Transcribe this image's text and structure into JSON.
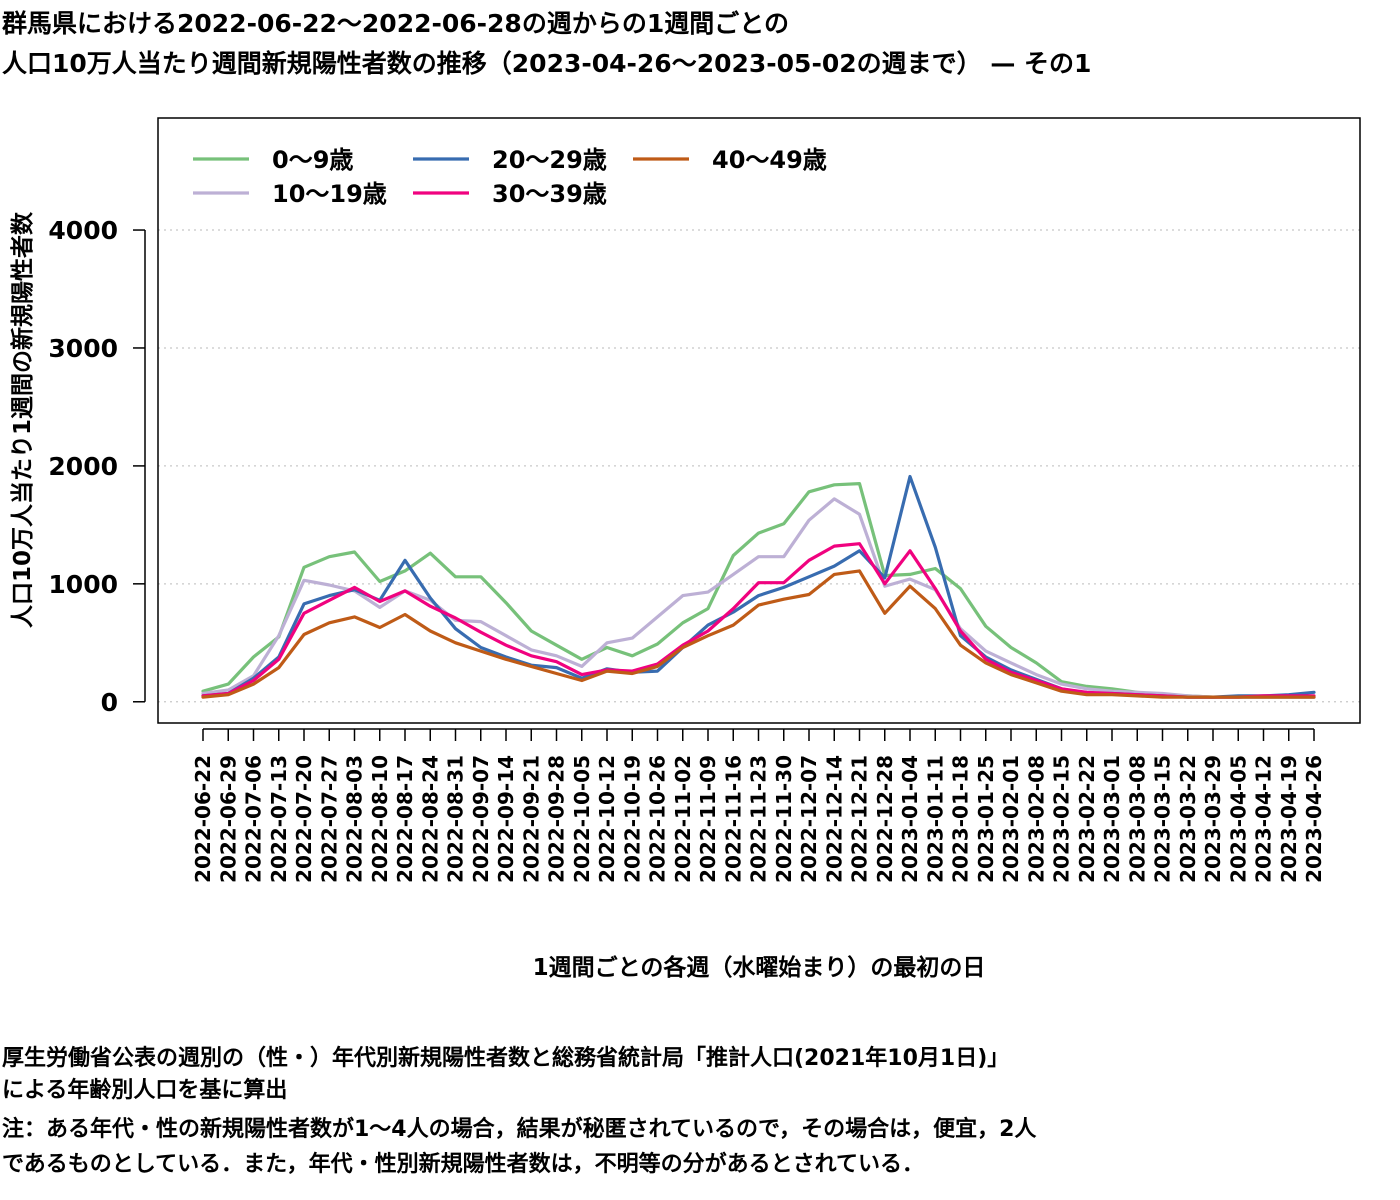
{
  "title": {
    "line1": "群馬県における2022-06-22〜2022-06-28の週からの1週間ごとの",
    "line2": "人口10万人当たり週間新規陽性者数の推移（2023-04-26〜2023-05-02の週まで） — その1"
  },
  "notes": {
    "line1": "厚生労働省公表の週別の（性・）年代別新規陽性者数と総務省統計局「推計人口(2021年10月1日)」",
    "line2": "による年齢別人口を基に算出",
    "line3": "注：ある年代・性の新規陽性者数が1〜4人の場合，結果が秘匿されているので，その場合は，便宜，2人",
    "line4": "であるものとしている．また，年代・性別新規陽性者数は，不明等の分があるとされている．"
  },
  "chart_data": {
    "type": "line",
    "xlabel": "1週間ごとの各週（水曜始まり）の最初の日",
    "ylabel": "人口10万人当たり1週間の新規陽性者数",
    "ylim": [
      -180,
      4950
    ],
    "yticks": [
      0,
      1000,
      2000,
      3000,
      4000
    ],
    "grid": "horizontal-dotted",
    "legend_position": "top-left",
    "x": [
      "2022-06-22",
      "2022-06-29",
      "2022-07-06",
      "2022-07-13",
      "2022-07-20",
      "2022-07-27",
      "2022-08-03",
      "2022-08-10",
      "2022-08-17",
      "2022-08-24",
      "2022-08-31",
      "2022-09-07",
      "2022-09-14",
      "2022-09-21",
      "2022-09-28",
      "2022-10-05",
      "2022-10-12",
      "2022-10-19",
      "2022-10-26",
      "2022-11-02",
      "2022-11-09",
      "2022-11-16",
      "2022-11-23",
      "2022-11-30",
      "2022-12-07",
      "2022-12-14",
      "2022-12-21",
      "2022-12-28",
      "2023-01-04",
      "2023-01-11",
      "2023-01-18",
      "2023-01-25",
      "2023-02-01",
      "2023-02-08",
      "2023-02-15",
      "2023-02-22",
      "2023-03-01",
      "2023-03-08",
      "2023-03-15",
      "2023-03-22",
      "2023-03-29",
      "2023-04-05",
      "2023-04-12",
      "2023-04-19",
      "2023-04-26"
    ],
    "series": [
      {
        "name": "0〜9歳",
        "color": "#77c17a",
        "values": [
          90,
          150,
          380,
          550,
          1140,
          1230,
          1270,
          1020,
          1110,
          1260,
          1060,
          1060,
          840,
          600,
          480,
          360,
          460,
          390,
          490,
          670,
          790,
          1240,
          1430,
          1510,
          1780,
          1840,
          1850,
          1070,
          1080,
          1130,
          960,
          640,
          460,
          330,
          170,
          130,
          110,
          80,
          60,
          50,
          40,
          40,
          40,
          40,
          40
        ]
      },
      {
        "name": "10〜19歳",
        "color": "#bdb0d5",
        "values": [
          70,
          100,
          220,
          560,
          1030,
          990,
          940,
          800,
          940,
          860,
          690,
          680,
          560,
          440,
          390,
          300,
          500,
          540,
          720,
          900,
          930,
          1080,
          1230,
          1230,
          1540,
          1720,
          1590,
          980,
          1040,
          950,
          620,
          430,
          330,
          230,
          150,
          110,
          90,
          80,
          70,
          50,
          40,
          40,
          40,
          40,
          40
        ]
      },
      {
        "name": "20〜29歳",
        "color": "#386cb0",
        "values": [
          50,
          70,
          200,
          380,
          830,
          900,
          950,
          860,
          1200,
          880,
          620,
          460,
          380,
          310,
          290,
          200,
          280,
          250,
          260,
          460,
          650,
          760,
          900,
          970,
          1060,
          1150,
          1280,
          1050,
          1910,
          1310,
          560,
          380,
          270,
          190,
          110,
          70,
          70,
          60,
          50,
          40,
          40,
          50,
          50,
          60,
          80
        ]
      },
      {
        "name": "30〜39歳",
        "color": "#f0027f",
        "values": [
          50,
          70,
          180,
          360,
          750,
          860,
          970,
          850,
          940,
          810,
          710,
          590,
          480,
          390,
          340,
          230,
          270,
          260,
          320,
          480,
          600,
          790,
          1010,
          1010,
          1200,
          1320,
          1340,
          1000,
          1280,
          960,
          600,
          360,
          250,
          180,
          110,
          80,
          70,
          60,
          50,
          40,
          40,
          40,
          50,
          50,
          50
        ]
      },
      {
        "name": "40〜49歳",
        "color": "#bf5b17",
        "values": [
          40,
          60,
          150,
          290,
          570,
          670,
          720,
          630,
          740,
          600,
          500,
          430,
          360,
          300,
          240,
          180,
          260,
          240,
          300,
          460,
          560,
          650,
          820,
          870,
          910,
          1080,
          1110,
          750,
          980,
          790,
          480,
          330,
          230,
          160,
          90,
          60,
          60,
          50,
          40,
          40,
          40,
          40,
          40,
          40,
          40
        ]
      }
    ]
  }
}
